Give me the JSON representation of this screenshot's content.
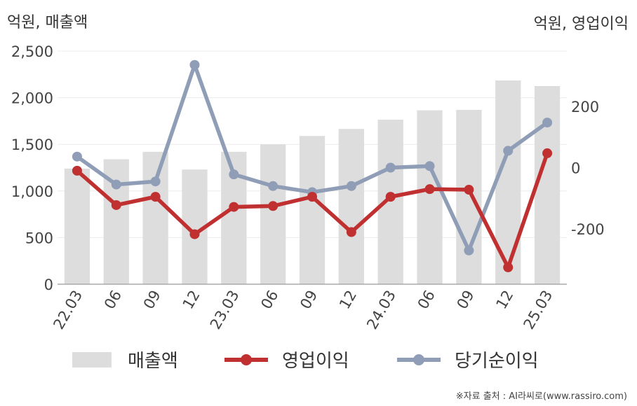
{
  "chart_data": {
    "type": "bar+line",
    "left_axis_label": "억원, 매출액",
    "right_axis_label": "억원, 영업이익",
    "source": "※자료 출처 : AI라씨로(www.rassiro.com)",
    "categories": [
      "22.03",
      "06",
      "09",
      "12",
      "23.03",
      "06",
      "09",
      "12",
      "24.03",
      "06",
      "09",
      "12",
      "25.03"
    ],
    "left_ylim": [
      0,
      2500
    ],
    "left_ticks": [
      "0",
      "500",
      "1,000",
      "1,500",
      "2,000",
      "2,500"
    ],
    "left_tick_values": [
      0,
      500,
      1000,
      1500,
      2000,
      2500
    ],
    "right_ylim": [
      -380,
      380
    ],
    "right_ticks": [
      "-200",
      "0",
      "200"
    ],
    "right_tick_values": [
      -200,
      0,
      200
    ],
    "series": [
      {
        "name": "매출액",
        "kind": "bar",
        "axis": "left",
        "color": "#dddddd",
        "values": [
          1240,
          1340,
          1420,
          1230,
          1420,
          1500,
          1590,
          1665,
          1765,
          1865,
          1870,
          2185,
          2125
        ]
      },
      {
        "name": "영업이익",
        "kind": "line",
        "axis": "right",
        "color": "#c03030",
        "values": [
          -10,
          -122,
          -95,
          -217,
          -128,
          -125,
          -95,
          -210,
          -95,
          -70,
          -72,
          -325,
          47
        ]
      },
      {
        "name": "당기순이익",
        "kind": "line",
        "axis": "right",
        "color": "#8f9db6",
        "values": [
          36,
          -55,
          -45,
          335,
          -22,
          -60,
          -80,
          -60,
          0,
          5,
          -270,
          55,
          147
        ]
      }
    ],
    "legend_position": "bottom",
    "grid": true
  }
}
